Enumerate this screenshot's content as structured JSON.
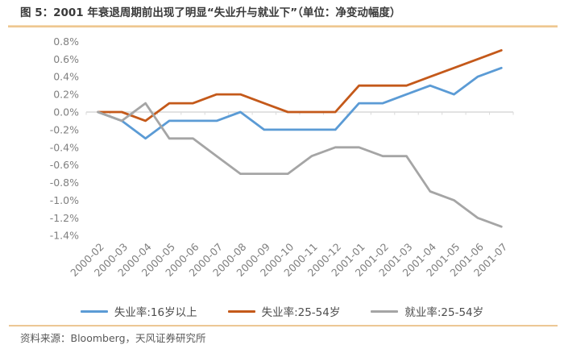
{
  "header": {
    "title": "图 5：2001 年衰退周期前出现了明显“失业升与就业下”（单位：净变动幅度）"
  },
  "chart_data": {
    "type": "line",
    "title": "2001 年衰退周期前出现了明显“失业升与就业下”",
    "unit_label": "净变动幅度",
    "categories": [
      "2000-02",
      "2000-03",
      "2000-04",
      "2000-05",
      "2000-06",
      "2000-07",
      "2000-08",
      "2000-09",
      "2000-10",
      "2000-11",
      "2000-12",
      "2001-01",
      "2001-02",
      "2001-03",
      "2001-04",
      "2001-05",
      "2001-06",
      "2001-07"
    ],
    "series": [
      {
        "name": "失业率:16岁以上",
        "color": "#5B9BD5",
        "values": [
          0.0,
          -0.1,
          -0.3,
          -0.1,
          -0.1,
          -0.1,
          0.0,
          -0.2,
          -0.2,
          -0.2,
          -0.2,
          0.1,
          0.1,
          0.2,
          0.3,
          0.2,
          0.4,
          0.5
        ]
      },
      {
        "name": "失业率:25-54岁",
        "color": "#C4591A",
        "values": [
          0.0,
          0.0,
          -0.1,
          0.1,
          0.1,
          0.2,
          0.2,
          0.1,
          0.0,
          0.0,
          0.0,
          0.3,
          0.3,
          0.3,
          0.4,
          0.5,
          0.6,
          0.7
        ]
      },
      {
        "name": "就业率:25-54岁",
        "color": "#A5A5A5",
        "values": [
          0.0,
          -0.1,
          0.1,
          -0.3,
          -0.3,
          -0.5,
          -0.7,
          -0.7,
          -0.7,
          -0.5,
          -0.4,
          -0.4,
          -0.5,
          -0.5,
          -0.9,
          -1.0,
          -1.2,
          -1.3
        ]
      }
    ],
    "ytick_labels": [
      "0.8%",
      "0.6%",
      "0.4%",
      "0.2%",
      "0.0%",
      "-0.2%",
      "-0.4%",
      "-0.6%",
      "-0.8%",
      "-1.0%",
      "-1.2%",
      "-1.4%"
    ],
    "ytick_values": [
      0.8,
      0.6,
      0.4,
      0.2,
      0.0,
      -0.2,
      -0.4,
      -0.6,
      -0.8,
      -1.0,
      -1.2,
      -1.4
    ],
    "ylim": [
      -1.4,
      0.8
    ],
    "grid": "zero-axis-only",
    "legend_position": "bottom",
    "x_label_rotation_deg": 45
  },
  "footer": {
    "source": "资料来源：Bloomberg，天风证券研究所"
  },
  "colors": {
    "axis_line": "#D9D9D9",
    "tick_label": "#7F7F7F",
    "title_text": "#3A3A3A",
    "accent_rule": "#E9B876",
    "source_text": "#595959"
  }
}
